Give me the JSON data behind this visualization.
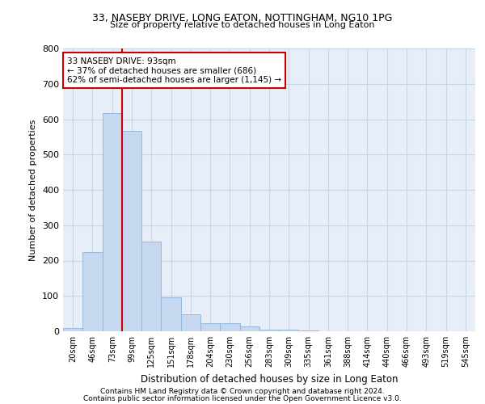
{
  "title_line1": "33, NASEBY DRIVE, LONG EATON, NOTTINGHAM, NG10 1PG",
  "title_line2": "Size of property relative to detached houses in Long Eaton",
  "xlabel": "Distribution of detached houses by size in Long Eaton",
  "ylabel": "Number of detached properties",
  "footer_line1": "Contains HM Land Registry data © Crown copyright and database right 2024.",
  "footer_line2": "Contains public sector information licensed under the Open Government Licence v3.0.",
  "bin_labels": [
    "20sqm",
    "46sqm",
    "73sqm",
    "99sqm",
    "125sqm",
    "151sqm",
    "178sqm",
    "204sqm",
    "230sqm",
    "256sqm",
    "283sqm",
    "309sqm",
    "335sqm",
    "361sqm",
    "388sqm",
    "414sqm",
    "440sqm",
    "466sqm",
    "493sqm",
    "519sqm",
    "545sqm"
  ],
  "bar_values": [
    10,
    225,
    617,
    567,
    253,
    96,
    49,
    22,
    22,
    13,
    5,
    4,
    2,
    1,
    0,
    1,
    0,
    0,
    0,
    0,
    0
  ],
  "bar_color": "#c5d8f0",
  "bar_edgecolor": "#8ab4d8",
  "grid_color": "#c8d4e8",
  "background_color": "#e8eef8",
  "vline_color": "#cc0000",
  "annotation_text": "33 NASEBY DRIVE: 93sqm\n← 37% of detached houses are smaller (686)\n62% of semi-detached houses are larger (1,145) →",
  "annotation_box_color": "#cc0000",
  "ylim": [
    0,
    800
  ],
  "yticks": [
    0,
    100,
    200,
    300,
    400,
    500,
    600,
    700,
    800
  ],
  "vline_pos": 2.5
}
